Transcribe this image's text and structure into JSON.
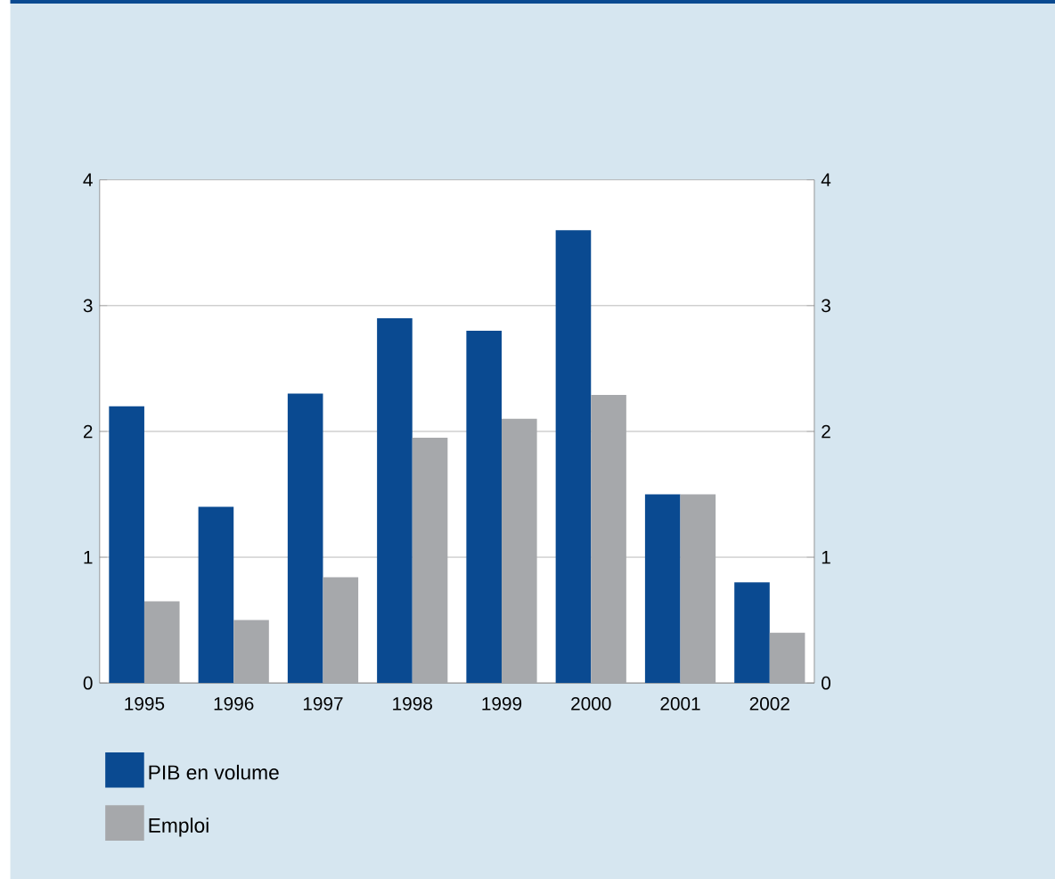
{
  "chart_data": {
    "type": "bar",
    "categories": [
      "1995",
      "1996",
      "1997",
      "1998",
      "1999",
      "2000",
      "2001",
      "2002"
    ],
    "series": [
      {
        "name": "PIB en volume",
        "color": "#0a4a91",
        "values": [
          2.2,
          1.4,
          2.3,
          2.9,
          2.8,
          3.6,
          1.5,
          0.8
        ]
      },
      {
        "name": "Emploi",
        "color": "#a6a8ab",
        "values": [
          0.65,
          0.5,
          0.84,
          1.95,
          2.1,
          2.29,
          1.5,
          0.4
        ]
      }
    ],
    "ylim": [
      0,
      4
    ],
    "yticks": [
      0,
      1,
      2,
      3,
      4
    ],
    "y2lim": [
      0,
      4
    ],
    "y2ticks": [
      0,
      1,
      2,
      3,
      4
    ],
    "grid": "y",
    "legend": "bottom left"
  }
}
